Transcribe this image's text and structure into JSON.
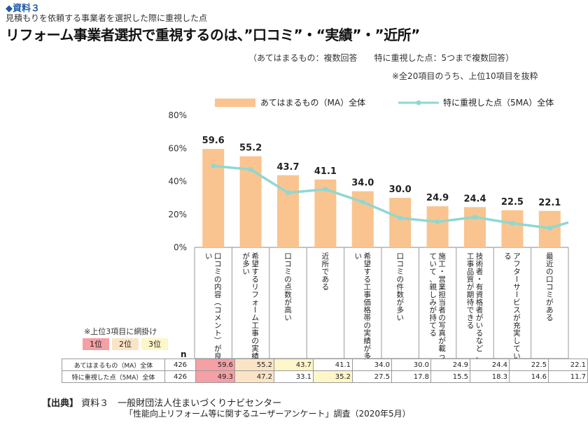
{
  "header": {
    "doc_label": "◆資料３",
    "subtitle": "見積もりを依頼する事業者を選択した際に重視した点",
    "title": "リフォーム事業者選択で重視するのは、”口コミ”・“実績”・”近所”",
    "condition": "（あてはまるもの：複数回答　　特に重視した点：5つまで複数回答）",
    "note": "※全20項目のうち、上位10項目を抜粋"
  },
  "chart_data": {
    "type": "bar",
    "categories": [
      "口コミの内容（コメント）が良い",
      "希望するリフォーム工事の実績が多い",
      "口コミの点数が高い",
      "近所である",
      "希望する工事価格帯の実績が多い",
      "口コミの件数が多い",
      "施工・営業担当者の写真が載っていて、親しみが持てる",
      "技術者・有資格者がいるなど、工事品質が期待できる",
      "アフターサービスが充実している",
      "最近の口コミがある"
    ],
    "series": [
      {
        "name": "あてはまるもの（MA）全体",
        "type": "bar",
        "color": "#f9c48f",
        "values": [
          59.6,
          55.2,
          43.7,
          41.1,
          34.0,
          30.0,
          24.9,
          24.4,
          22.5,
          22.1
        ]
      },
      {
        "name": "特に重視した点（5MA）全体",
        "type": "line",
        "color": "#8fd8d2",
        "values": [
          49.3,
          47.2,
          33.1,
          35.2,
          27.5,
          17.8,
          15.5,
          18.3,
          14.6,
          11.7
        ]
      }
    ],
    "y_ticks": [
      "0%",
      "20%",
      "40%",
      "60%",
      "80%"
    ],
    "ylim": [
      0,
      80
    ],
    "value_labels": [
      "59.6",
      "55.2",
      "43.7",
      "41.1",
      "34.0",
      "30.0",
      "24.9",
      "24.4",
      "22.5",
      "22.1"
    ],
    "legend_position": "top",
    "grid": false
  },
  "table": {
    "n_label": "n",
    "rows": [
      {
        "label": "あてはまるもの（MA）全体",
        "n": "426",
        "values": [
          "59.6",
          "55.2",
          "43.7",
          "41.1",
          "34.0",
          "30.0",
          "24.9",
          "24.4",
          "22.5",
          "22.1"
        ],
        "ranks": [
          1,
          2,
          3,
          0,
          0,
          0,
          0,
          0,
          0,
          0
        ]
      },
      {
        "label": "特に重視した点（5MA）全体",
        "n": "426",
        "values": [
          "49.3",
          "47.2",
          "33.1",
          "35.2",
          "27.5",
          "17.8",
          "15.5",
          "18.3",
          "14.6",
          "11.7"
        ],
        "ranks": [
          1,
          2,
          0,
          3,
          0,
          0,
          0,
          0,
          0,
          0
        ]
      }
    ]
  },
  "rank_legend": {
    "note": "※上位3項目に網掛け",
    "items": [
      {
        "label": "1位",
        "color": "#f4a0a4"
      },
      {
        "label": "2位",
        "color": "#fbe4c6"
      },
      {
        "label": "3位",
        "color": "#fdf6c8"
      }
    ]
  },
  "source": {
    "label": "【出典】",
    "line1": "資料３　一般財団法人住まいづくりナビセンター",
    "line2": "「性能向上リフォーム等に関するユーザーアンケート」調査（2020年5月）"
  }
}
